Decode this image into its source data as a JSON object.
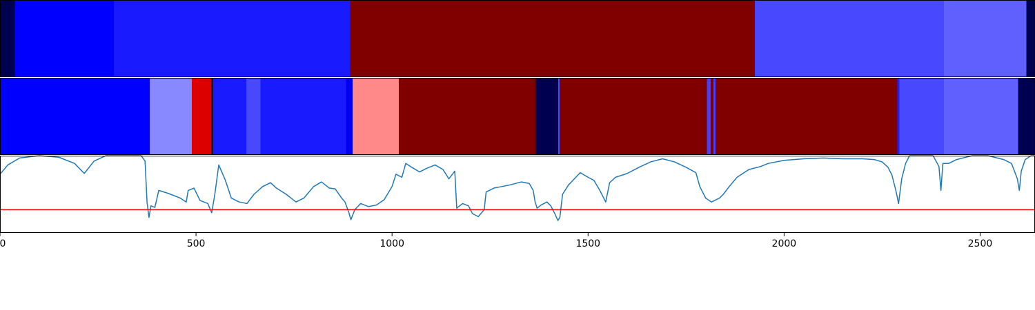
{
  "chart_data": {
    "type": "segmented-strips-with-line",
    "x_range": [
      0,
      2640
    ],
    "x_ticks": [
      0,
      500,
      1000,
      1500,
      2000,
      2500
    ],
    "x_tick_labels": [
      "0",
      "500",
      "1000",
      "1500",
      "2000",
      "2500"
    ],
    "strips": [
      {
        "name": "",
        "segments": [
          {
            "start": 0,
            "end": 38,
            "color": "#000050"
          },
          {
            "start": 38,
            "end": 290,
            "color": "#0000ff"
          },
          {
            "start": 290,
            "end": 893,
            "color": "#1a1aff"
          },
          {
            "start": 893,
            "end": 1925,
            "color": "#800000"
          },
          {
            "start": 1925,
            "end": 2408,
            "color": "#4848ff"
          },
          {
            "start": 2408,
            "end": 2618,
            "color": "#6060ff"
          },
          {
            "start": 2618,
            "end": 2640,
            "color": "#000050"
          }
        ]
      },
      {
        "name": "",
        "segments": [
          {
            "start": 0,
            "end": 382,
            "color": "#0000ff"
          },
          {
            "start": 382,
            "end": 489,
            "color": "#8888ff"
          },
          {
            "start": 489,
            "end": 539,
            "color": "#dd0000"
          },
          {
            "start": 539,
            "end": 544,
            "color": "#000050"
          },
          {
            "start": 544,
            "end": 628,
            "color": "#1a1aff"
          },
          {
            "start": 628,
            "end": 664,
            "color": "#4848ff"
          },
          {
            "start": 664,
            "end": 883,
            "color": "#1a1aff"
          },
          {
            "start": 883,
            "end": 899,
            "color": "#0000ee"
          },
          {
            "start": 899,
            "end": 1017,
            "color": "#ff8888"
          },
          {
            "start": 1017,
            "end": 1367,
            "color": "#800000"
          },
          {
            "start": 1367,
            "end": 1424,
            "color": "#000050"
          },
          {
            "start": 1424,
            "end": 1427,
            "color": "#4848ff"
          },
          {
            "start": 1427,
            "end": 1803,
            "color": "#800000"
          },
          {
            "start": 1803,
            "end": 1813,
            "color": "#4040ff"
          },
          {
            "start": 1813,
            "end": 1820,
            "color": "#800000"
          },
          {
            "start": 1820,
            "end": 1825,
            "color": "#4040ff"
          },
          {
            "start": 1825,
            "end": 2289,
            "color": "#800000"
          },
          {
            "start": 2289,
            "end": 2294,
            "color": "#2020ff"
          },
          {
            "start": 2294,
            "end": 2408,
            "color": "#4848ff"
          },
          {
            "start": 2408,
            "end": 2597,
            "color": "#6060ff"
          },
          {
            "start": 2597,
            "end": 2640,
            "color": "#000050"
          }
        ]
      }
    ],
    "line_series": {
      "name": "",
      "color": "#1f77b4",
      "y_range": [
        0,
        1
      ],
      "threshold": 0.3,
      "threshold_color": "#ff0000",
      "points": [
        [
          0,
          0.76
        ],
        [
          20,
          0.88
        ],
        [
          50,
          0.97
        ],
        [
          100,
          1.0
        ],
        [
          150,
          0.98
        ],
        [
          190,
          0.9
        ],
        [
          215,
          0.77
        ],
        [
          240,
          0.93
        ],
        [
          270,
          1.0
        ],
        [
          330,
          1.0
        ],
        [
          360,
          1.0
        ],
        [
          370,
          0.93
        ],
        [
          375,
          0.4
        ],
        [
          380,
          0.2
        ],
        [
          385,
          0.35
        ],
        [
          395,
          0.33
        ],
        [
          405,
          0.55
        ],
        [
          430,
          0.51
        ],
        [
          460,
          0.45
        ],
        [
          475,
          0.4
        ],
        [
          480,
          0.55
        ],
        [
          495,
          0.58
        ],
        [
          510,
          0.42
        ],
        [
          530,
          0.38
        ],
        [
          540,
          0.26
        ],
        [
          548,
          0.5
        ],
        [
          558,
          0.88
        ],
        [
          575,
          0.68
        ],
        [
          590,
          0.45
        ],
        [
          610,
          0.4
        ],
        [
          630,
          0.38
        ],
        [
          648,
          0.5
        ],
        [
          670,
          0.6
        ],
        [
          690,
          0.65
        ],
        [
          705,
          0.58
        ],
        [
          730,
          0.5
        ],
        [
          755,
          0.4
        ],
        [
          775,
          0.45
        ],
        [
          800,
          0.6
        ],
        [
          820,
          0.66
        ],
        [
          840,
          0.58
        ],
        [
          855,
          0.57
        ],
        [
          870,
          0.46
        ],
        [
          880,
          0.4
        ],
        [
          890,
          0.26
        ],
        [
          895,
          0.17
        ],
        [
          905,
          0.3
        ],
        [
          920,
          0.38
        ],
        [
          940,
          0.34
        ],
        [
          960,
          0.36
        ],
        [
          980,
          0.43
        ],
        [
          1000,
          0.6
        ],
        [
          1010,
          0.76
        ],
        [
          1025,
          0.72
        ],
        [
          1035,
          0.9
        ],
        [
          1050,
          0.85
        ],
        [
          1070,
          0.79
        ],
        [
          1090,
          0.84
        ],
        [
          1110,
          0.88
        ],
        [
          1130,
          0.82
        ],
        [
          1145,
          0.7
        ],
        [
          1160,
          0.8
        ],
        [
          1165,
          0.32
        ],
        [
          1180,
          0.38
        ],
        [
          1195,
          0.35
        ],
        [
          1205,
          0.25
        ],
        [
          1220,
          0.21
        ],
        [
          1235,
          0.3
        ],
        [
          1240,
          0.53
        ],
        [
          1260,
          0.58
        ],
        [
          1280,
          0.6
        ],
        [
          1300,
          0.62
        ],
        [
          1330,
          0.66
        ],
        [
          1350,
          0.64
        ],
        [
          1360,
          0.55
        ],
        [
          1365,
          0.4
        ],
        [
          1370,
          0.32
        ],
        [
          1380,
          0.36
        ],
        [
          1395,
          0.4
        ],
        [
          1405,
          0.35
        ],
        [
          1415,
          0.25
        ],
        [
          1423,
          0.16
        ],
        [
          1428,
          0.2
        ],
        [
          1435,
          0.5
        ],
        [
          1450,
          0.62
        ],
        [
          1465,
          0.7
        ],
        [
          1480,
          0.78
        ],
        [
          1500,
          0.72
        ],
        [
          1515,
          0.68
        ],
        [
          1530,
          0.55
        ],
        [
          1545,
          0.4
        ],
        [
          1555,
          0.65
        ],
        [
          1570,
          0.72
        ],
        [
          1600,
          0.77
        ],
        [
          1630,
          0.85
        ],
        [
          1660,
          0.92
        ],
        [
          1690,
          0.96
        ],
        [
          1720,
          0.92
        ],
        [
          1750,
          0.85
        ],
        [
          1775,
          0.78
        ],
        [
          1785,
          0.6
        ],
        [
          1800,
          0.45
        ],
        [
          1815,
          0.4
        ],
        [
          1835,
          0.45
        ],
        [
          1845,
          0.5
        ],
        [
          1860,
          0.6
        ],
        [
          1880,
          0.72
        ],
        [
          1910,
          0.82
        ],
        [
          1940,
          0.86
        ],
        [
          1960,
          0.9
        ],
        [
          2000,
          0.94
        ],
        [
          2050,
          0.96
        ],
        [
          2100,
          0.97
        ],
        [
          2150,
          0.96
        ],
        [
          2200,
          0.96
        ],
        [
          2230,
          0.95
        ],
        [
          2250,
          0.92
        ],
        [
          2265,
          0.85
        ],
        [
          2275,
          0.75
        ],
        [
          2285,
          0.55
        ],
        [
          2292,
          0.38
        ],
        [
          2300,
          0.7
        ],
        [
          2310,
          0.9
        ],
        [
          2320,
          1.0
        ],
        [
          2360,
          1.0
        ],
        [
          2380,
          1.0
        ],
        [
          2395,
          0.86
        ],
        [
          2400,
          0.55
        ],
        [
          2405,
          0.9
        ],
        [
          2420,
          0.9
        ],
        [
          2440,
          0.95
        ],
        [
          2480,
          1.0
        ],
        [
          2520,
          1.0
        ],
        [
          2560,
          0.95
        ],
        [
          2580,
          0.9
        ],
        [
          2595,
          0.7
        ],
        [
          2600,
          0.55
        ],
        [
          2605,
          0.8
        ],
        [
          2615,
          0.95
        ],
        [
          2630,
          1.0
        ],
        [
          2640,
          1.0
        ]
      ]
    }
  }
}
